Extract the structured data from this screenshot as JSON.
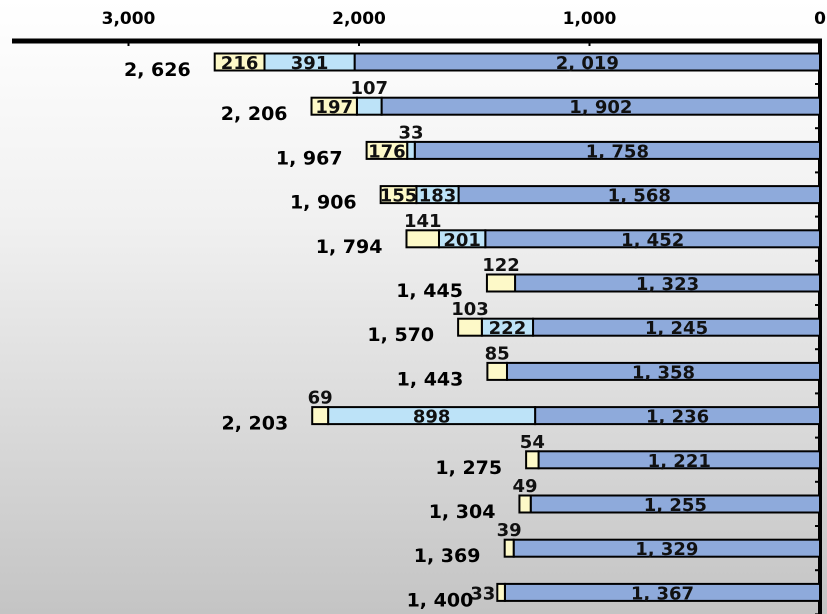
{
  "chart_data": {
    "type": "bar",
    "orientation": "horizontal-stacked",
    "x_axis_reversed": true,
    "xlim": [
      0,
      3000
    ],
    "x_ticks": [
      3000,
      2000,
      1000,
      0
    ],
    "x_tick_labels": [
      "3,000",
      "2,000",
      "1,000",
      "0"
    ],
    "series": [
      {
        "name": "",
        "color": "#8eaadb",
        "values": [
          2019,
          1902,
          1758,
          1568,
          1452,
          1323,
          1245,
          1358,
          1236,
          1221,
          1255,
          1329,
          1367
        ]
      },
      {
        "name": "",
        "color": "#bde3f8",
        "values": [
          391,
          107,
          33,
          183,
          201,
          0,
          222,
          0,
          898,
          0,
          0,
          0,
          0
        ]
      },
      {
        "name": "",
        "color": "#fdf9c8",
        "values": [
          216,
          197,
          176,
          155,
          141,
          122,
          103,
          85,
          69,
          54,
          49,
          39,
          33
        ]
      }
    ],
    "segment_labels": [
      [
        "2, 019",
        "391",
        "216"
      ],
      [
        "1, 902",
        "107",
        "197"
      ],
      [
        "1, 758",
        "33",
        "176"
      ],
      [
        "1, 568",
        "183",
        "155"
      ],
      [
        "1, 452",
        "201",
        "141"
      ],
      [
        "1, 323",
        "",
        "122"
      ],
      [
        "1, 245",
        "222",
        "103"
      ],
      [
        "1, 358",
        "",
        "85"
      ],
      [
        "1, 236",
        "898",
        "69"
      ],
      [
        "1, 221",
        "",
        "54"
      ],
      [
        "1, 255",
        "",
        "49"
      ],
      [
        "1, 329",
        "",
        "39"
      ],
      [
        "1, 367",
        "",
        "33"
      ]
    ],
    "totals": [
      2626,
      2206,
      1967,
      1906,
      1794,
      1445,
      1570,
      1443,
      2203,
      1275,
      1304,
      1369,
      1400
    ],
    "total_labels": [
      "2, 626",
      "2, 206",
      "1, 967",
      "1, 906",
      "1, 794",
      "1, 445",
      "1, 570",
      "1, 443",
      "2, 203",
      "1, 275",
      "1, 304",
      "1, 369",
      "1, 400"
    ],
    "grid": false,
    "title": "",
    "xlabel": "",
    "ylabel": ""
  }
}
